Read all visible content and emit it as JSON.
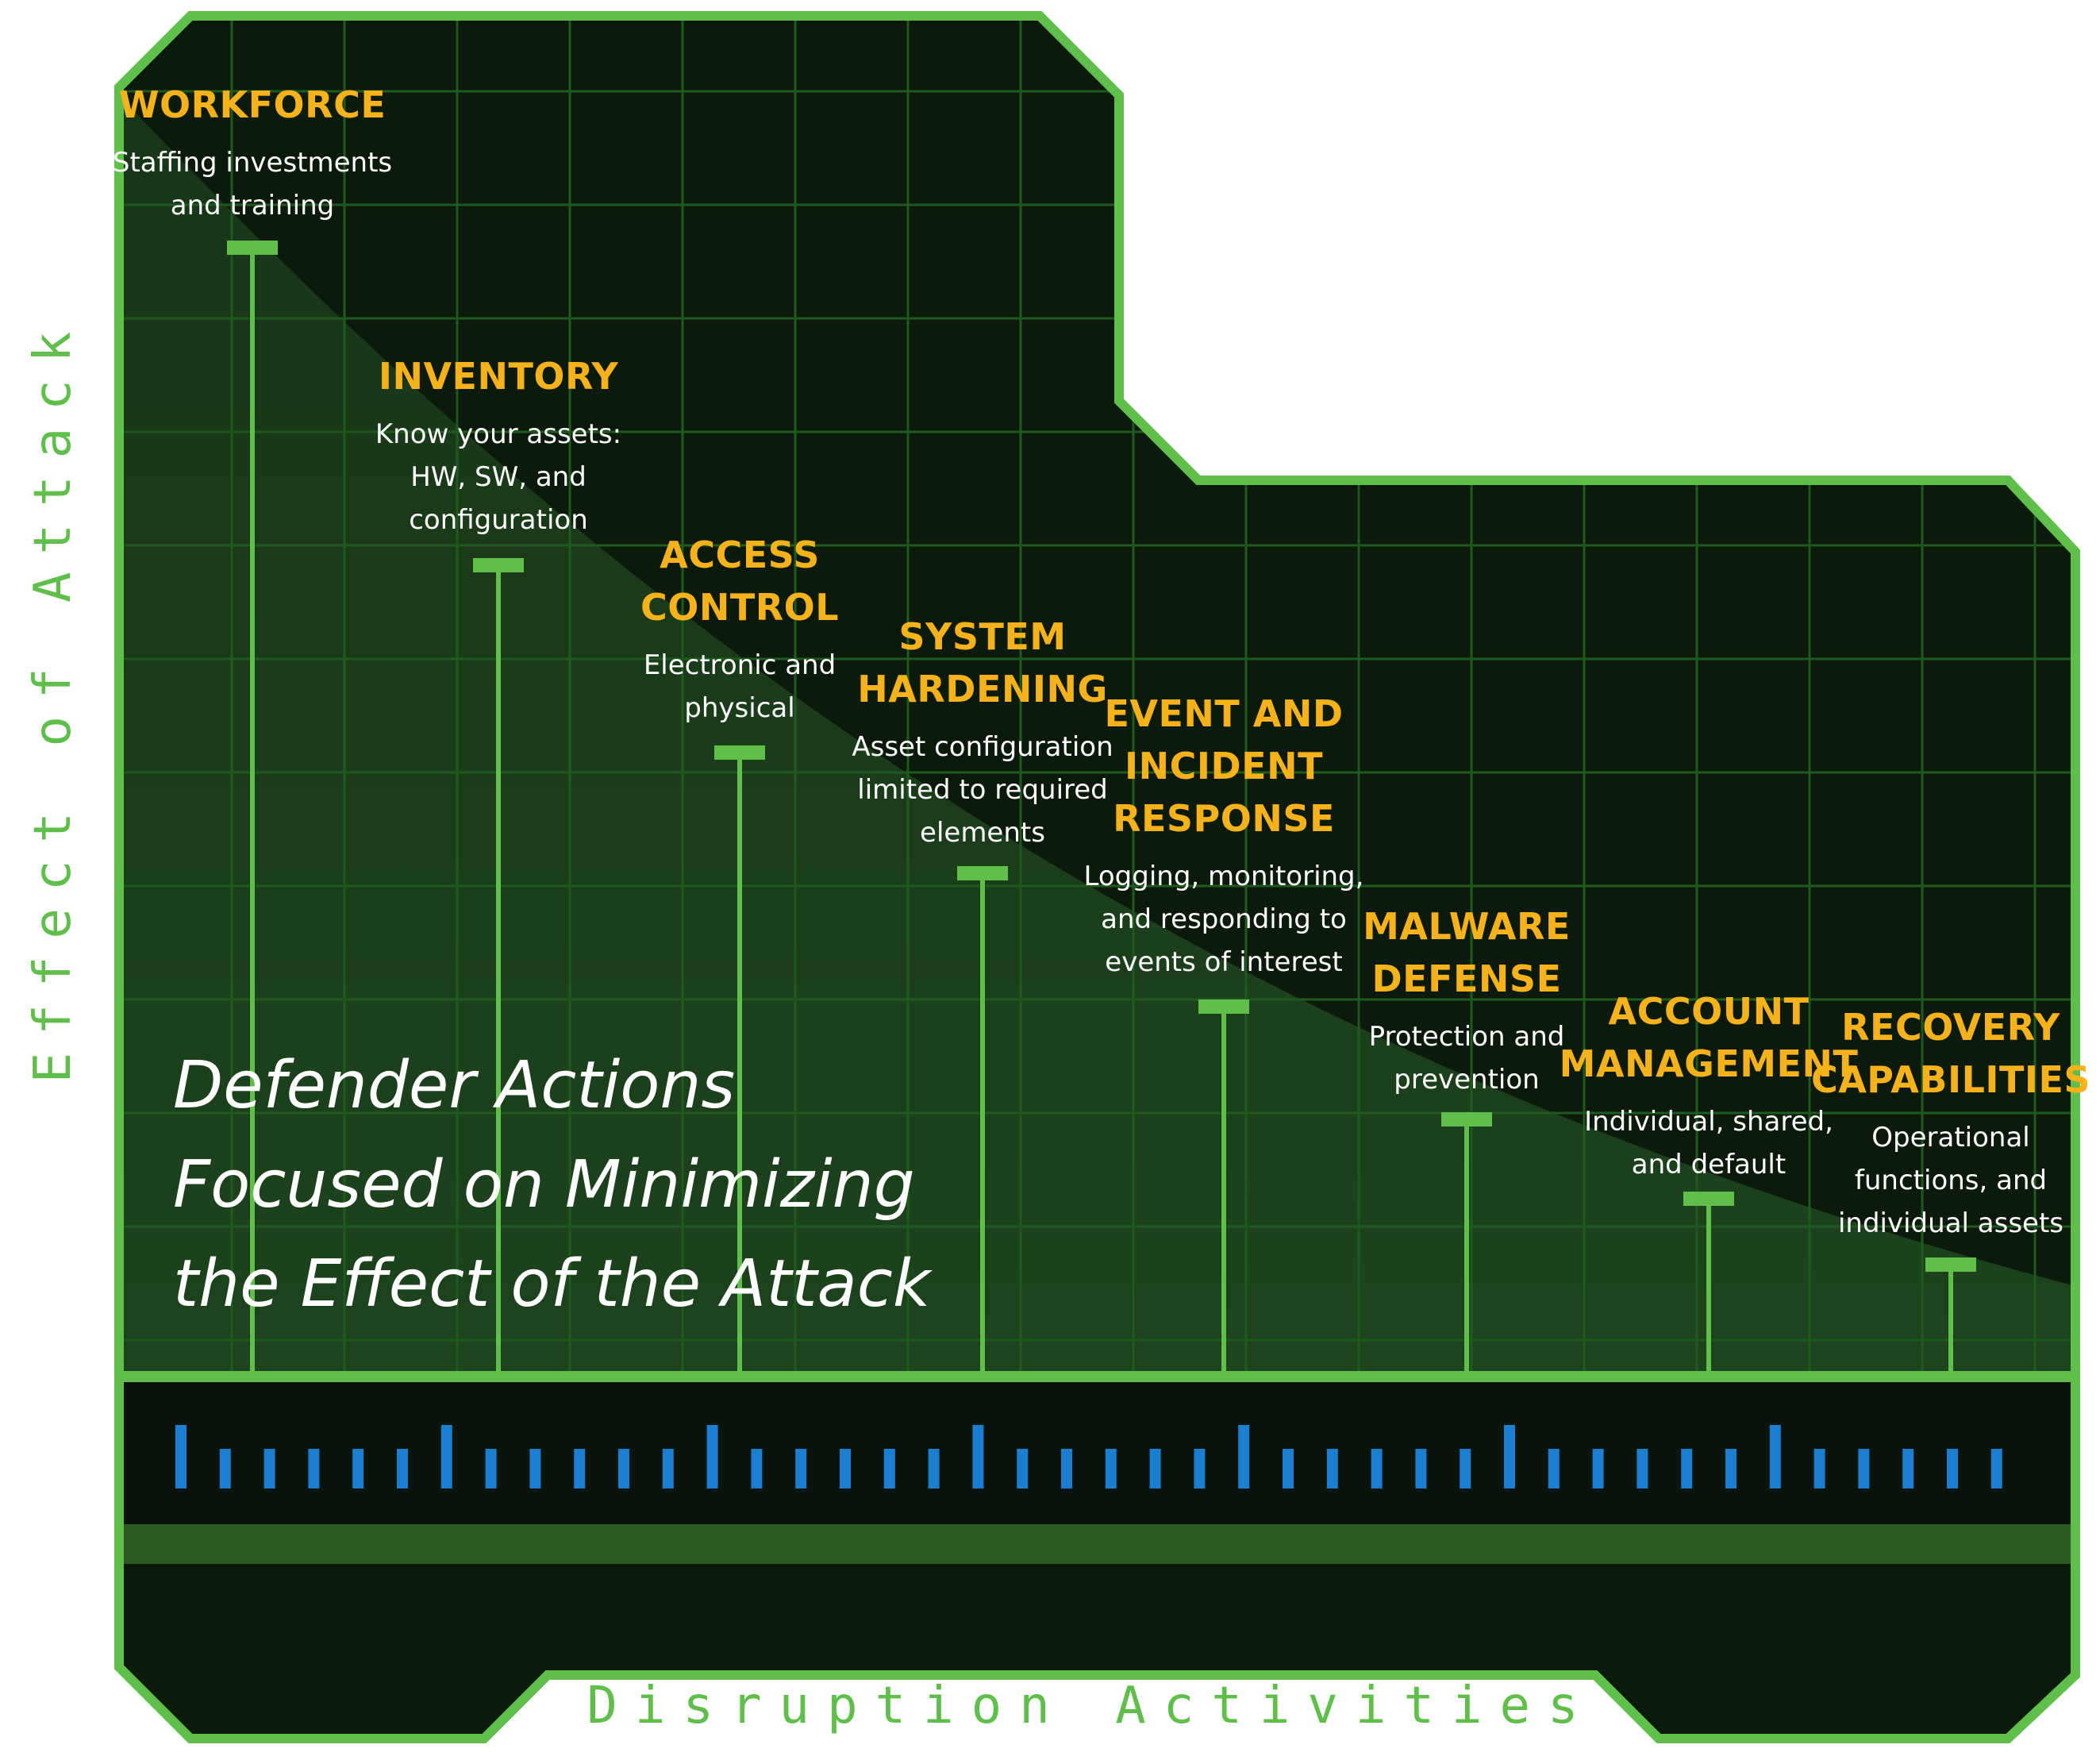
{
  "axes": {
    "y_label": "Effect of Attack",
    "x_label": "Disruption Activities"
  },
  "headline": {
    "lines": [
      "Defender Actions",
      "Focused on Minimizing",
      "the Effect of the Attack"
    ]
  },
  "actions": [
    {
      "heading": [
        "WORKFORCE"
      ],
      "description": [
        "Staffing investments",
        "and training"
      ]
    },
    {
      "heading": [
        "INVENTORY"
      ],
      "description": [
        "Know your assets:",
        "HW, SW, and",
        "configuration"
      ]
    },
    {
      "heading": [
        "ACCESS",
        "CONTROL"
      ],
      "description": [
        "Electronic and",
        "physical"
      ]
    },
    {
      "heading": [
        "SYSTEM",
        "HARDENING"
      ],
      "description": [
        "Asset configuration",
        "limited to required",
        "elements"
      ]
    },
    {
      "heading": [
        "EVENT AND",
        "INCIDENT",
        "RESPONSE"
      ],
      "description": [
        "Logging, monitoring,",
        "and responding to",
        "events of interest"
      ]
    },
    {
      "heading": [
        "MALWARE",
        "DEFENSE"
      ],
      "description": [
        "Protection and",
        "prevention"
      ]
    },
    {
      "heading": [
        "ACCOUNT",
        "MANAGEMENT"
      ],
      "description": [
        "Individual, shared,",
        "and default"
      ]
    },
    {
      "heading": [
        "RECOVERY",
        "CAPABILITIES"
      ],
      "description": [
        "Operational",
        "functions, and",
        "individual assets"
      ]
    }
  ],
  "colors": {
    "panel": "#0c1a0c",
    "border": "#5fbf4a",
    "grid": "#1e5a1e",
    "heading": "#f5b21a",
    "text": "#ffffff",
    "timeline_tick": "#1a7fd0"
  }
}
